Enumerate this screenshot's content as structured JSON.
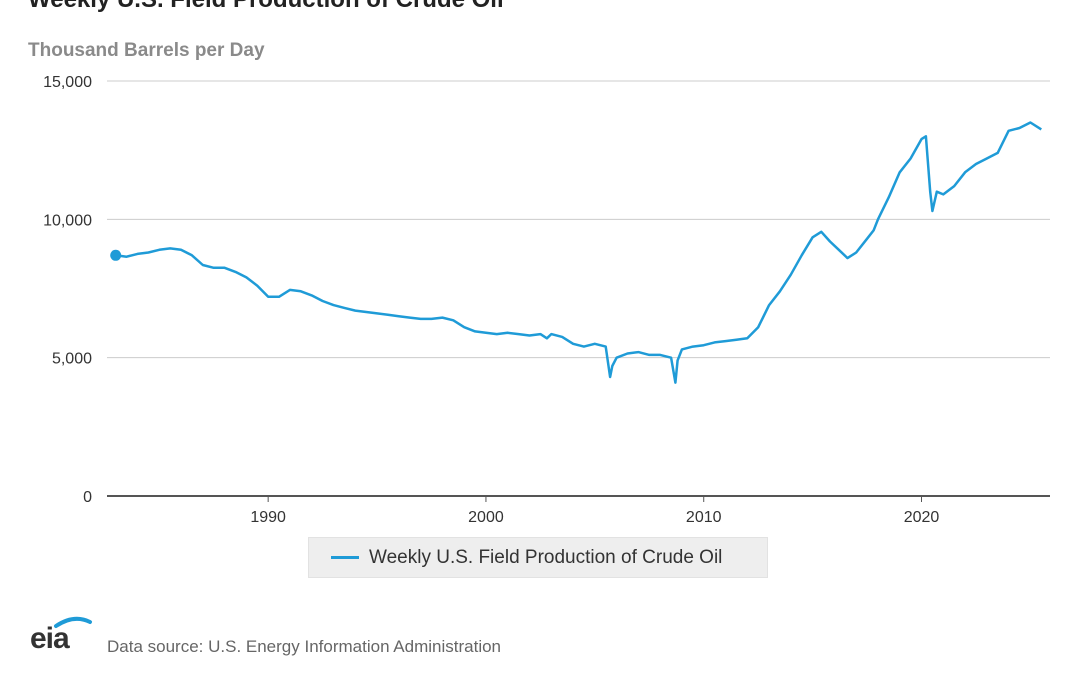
{
  "header": {
    "title": "Weekly U.S. Field Production of Crude Oil",
    "units": "Thousand Barrels per Day"
  },
  "footer": {
    "logo_text": "eia",
    "source": "Data source: U.S. Energy Information Administration"
  },
  "colors": {
    "series": "#1f9bd7",
    "grid": "#cccccc",
    "axis": "#555555"
  },
  "chart_data": {
    "type": "line",
    "title": "Weekly U.S. Field Production of Crude Oil",
    "ylabel": "Thousand Barrels per Day",
    "xlabel": "",
    "xlim": [
      1982.6,
      2025.9
    ],
    "ylim": [
      0,
      15000
    ],
    "x_ticks": [
      1990,
      2000,
      2010,
      2020
    ],
    "x_tick_labels": [
      "1990",
      "2000",
      "2010",
      "2020"
    ],
    "y_ticks": [
      0,
      5000,
      10000,
      15000
    ],
    "y_tick_labels": [
      "0",
      "5,000",
      "10,000",
      "15,000"
    ],
    "grid": "horizontal",
    "legend_position": "bottom-center",
    "series": [
      {
        "name": "Weekly U.S. Field Production of Crude Oil",
        "x": [
          1983.0,
          1983.5,
          1984.0,
          1984.5,
          1985.0,
          1985.5,
          1986.0,
          1986.5,
          1987.0,
          1987.5,
          1988.0,
          1988.5,
          1989.0,
          1989.5,
          1990.0,
          1990.5,
          1991.0,
          1991.5,
          1992.0,
          1992.5,
          1993.0,
          1993.5,
          1994.0,
          1994.5,
          1995.0,
          1995.5,
          1996.0,
          1996.5,
          1997.0,
          1997.5,
          1998.0,
          1998.5,
          1999.0,
          1999.5,
          2000.0,
          2000.5,
          2001.0,
          2001.5,
          2002.0,
          2002.5,
          2002.8,
          2003.0,
          2003.5,
          2004.0,
          2004.5,
          2005.0,
          2005.5,
          2005.7,
          2005.8,
          2006.0,
          2006.5,
          2007.0,
          2007.5,
          2008.0,
          2008.5,
          2008.7,
          2008.8,
          2009.0,
          2009.5,
          2010.0,
          2010.5,
          2011.0,
          2011.5,
          2012.0,
          2012.5,
          2013.0,
          2013.5,
          2014.0,
          2014.5,
          2015.0,
          2015.4,
          2015.8,
          2016.2,
          2016.6,
          2017.0,
          2017.5,
          2017.8,
          2018.0,
          2018.5,
          2019.0,
          2019.5,
          2020.0,
          2020.2,
          2020.4,
          2020.5,
          2020.7,
          2021.0,
          2021.5,
          2022.0,
          2022.5,
          2023.0,
          2023.5,
          2024.0,
          2024.5,
          2025.0,
          2025.5
        ],
        "y": [
          8700,
          8650,
          8750,
          8800,
          8900,
          8950,
          8900,
          8700,
          8350,
          8250,
          8250,
          8100,
          7900,
          7600,
          7200,
          7200,
          7450,
          7400,
          7250,
          7050,
          6900,
          6800,
          6700,
          6650,
          6600,
          6550,
          6500,
          6450,
          6400,
          6400,
          6450,
          6350,
          6100,
          5950,
          5900,
          5850,
          5900,
          5850,
          5800,
          5850,
          5700,
          5850,
          5750,
          5500,
          5400,
          5500,
          5400,
          4300,
          4700,
          5000,
          5150,
          5200,
          5100,
          5100,
          5000,
          4100,
          4900,
          5300,
          5400,
          5450,
          5550,
          5600,
          5650,
          5700,
          6100,
          6900,
          7400,
          8000,
          8700,
          9350,
          9550,
          9200,
          8900,
          8600,
          8800,
          9300,
          9600,
          10000,
          10800,
          11700,
          12200,
          12900,
          13000,
          11000,
          10300,
          11000,
          10900,
          11200,
          11700,
          12000,
          12200,
          12400,
          13200,
          13300,
          13500,
          13250
        ]
      }
    ]
  }
}
